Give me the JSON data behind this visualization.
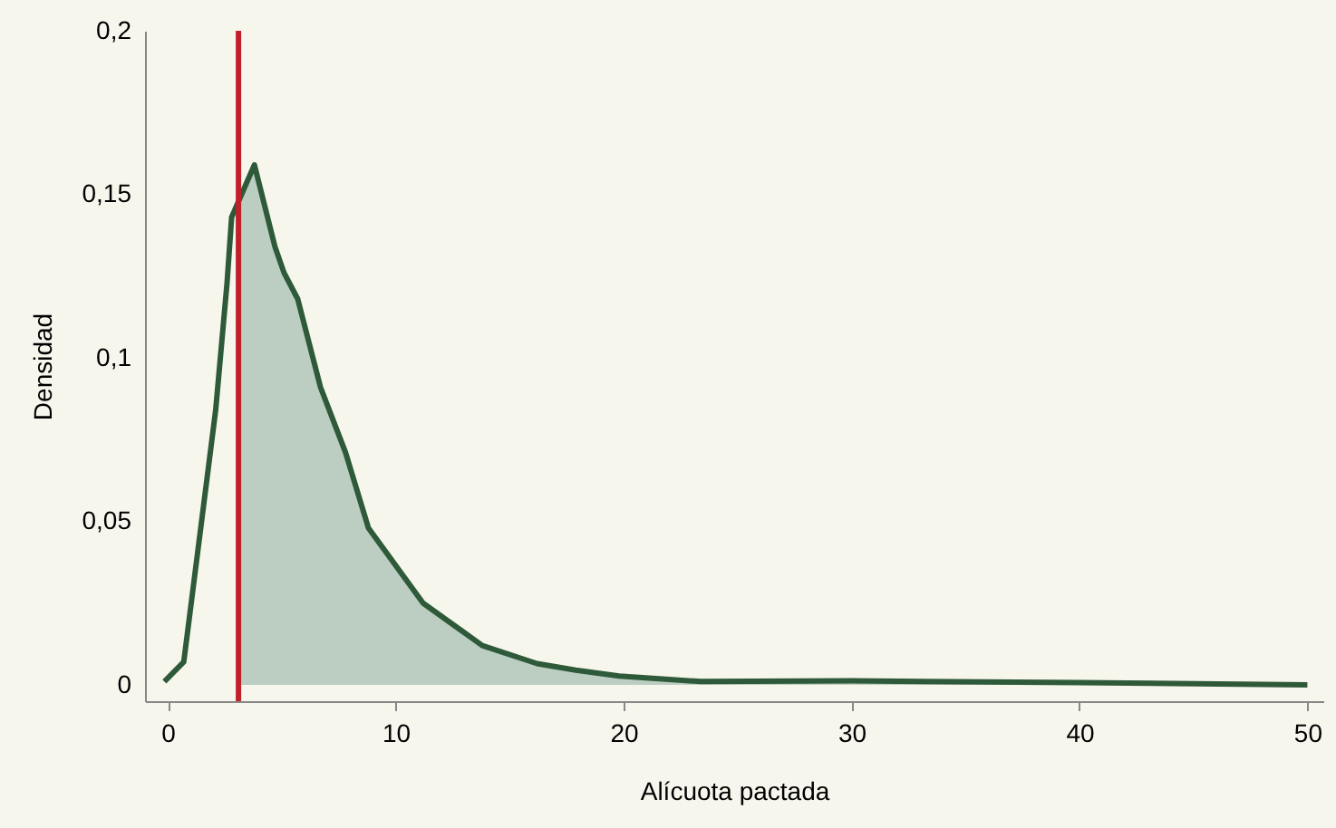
{
  "chart_data": {
    "type": "line",
    "xlabel": "Alícuota pactada",
    "ylabel": "Densidad",
    "xlim": [
      -1,
      50.7
    ],
    "xticks": [
      0,
      10,
      20,
      30,
      40,
      50
    ],
    "ylim": [
      -0.005,
      0.2
    ],
    "yticks": [
      {
        "value": 0,
        "label": "0"
      },
      {
        "value": 0.05,
        "label": "0,05"
      },
      {
        "value": 0.1,
        "label": "0,1"
      },
      {
        "value": 0.15,
        "label": "0,15"
      },
      {
        "value": 0.2,
        "label": "0,2"
      }
    ],
    "series": [
      {
        "type": "area",
        "color": "#bccdc1",
        "x": [
          3.1,
          3.8,
          4.7,
          5.1,
          5.7,
          6.7,
          7.8,
          8.8,
          11.2,
          13.8,
          16.2,
          17.9,
          19.8,
          23.4,
          30,
          40,
          50
        ],
        "values": [
          0.148,
          0.159,
          0.134,
          0.126,
          0.118,
          0.091,
          0.071,
          0.048,
          0.025,
          0.012,
          0.0065,
          0.0045,
          0.0027,
          0.001,
          0.0012,
          0.0007,
          0
        ]
      },
      {
        "type": "line",
        "color": "#2e5a3a",
        "x": [
          -0.15,
          0.7,
          2.1,
          2.6,
          2.8,
          3.8,
          4.7,
          5.1,
          5.7,
          6.7,
          7.8,
          8.8,
          11.2,
          13.8,
          16.2,
          17.9,
          19.8,
          23.4,
          30,
          40,
          50
        ],
        "values": [
          0.001,
          0.007,
          0.084,
          0.123,
          0.143,
          0.159,
          0.134,
          0.126,
          0.118,
          0.091,
          0.071,
          0.048,
          0.025,
          0.012,
          0.0065,
          0.0045,
          0.0027,
          0.001,
          0.0012,
          0.0007,
          0
        ]
      }
    ],
    "ref_lines": [
      {
        "axis": "x",
        "value": 3.1,
        "color": "#c0202a"
      }
    ]
  }
}
